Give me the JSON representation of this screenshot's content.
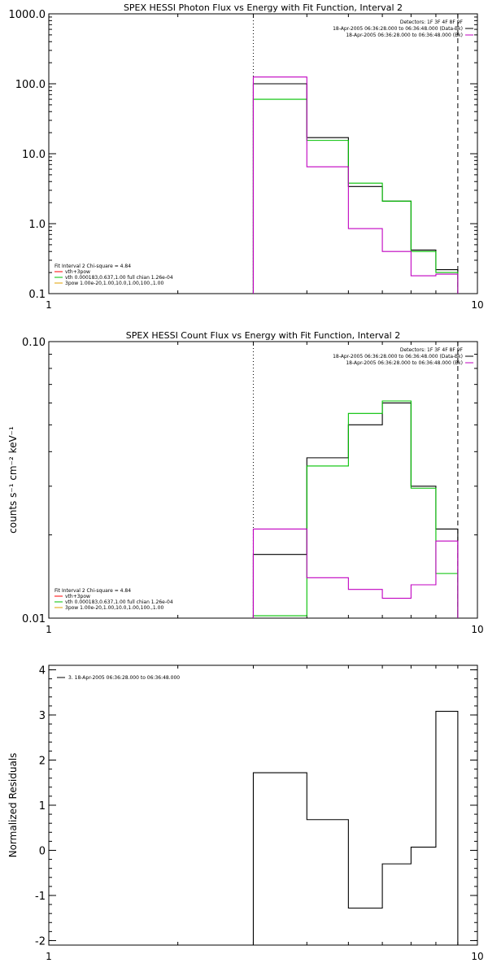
{
  "chart_data": [
    {
      "type": "line",
      "title": "SPEX HESSI Photon Flux vs Energy with Fit Function, Interval 2",
      "xscale": "log",
      "yscale": "log",
      "xlim": [
        1,
        10
      ],
      "ylim": [
        0.1,
        1000
      ],
      "xticks": [
        {
          "v": 1,
          "label": "1"
        },
        {
          "v": 10,
          "label": "10"
        }
      ],
      "yticks": [
        {
          "v": 0.1,
          "label": "0.1"
        },
        {
          "v": 1,
          "label": "1.0"
        },
        {
          "v": 10,
          "label": "10.0"
        },
        {
          "v": 100,
          "label": "100.0"
        },
        {
          "v": 1000,
          "label": "1000.0"
        }
      ],
      "ylabel": "",
      "vlines": [
        {
          "x": 3.0,
          "style": "dotted"
        },
        {
          "x": 9.0,
          "style": "dashed"
        }
      ],
      "edges": [
        3.0,
        4.0,
        5.0,
        6.0,
        7.0,
        8.0,
        9.0
      ],
      "series": [
        {
          "color": "#000000",
          "values": [
            100,
            17,
            3.4,
            2.1,
            0.42,
            0.22
          ]
        },
        {
          "color": "#00c000",
          "values": [
            60,
            15.5,
            3.8,
            2.1,
            0.4,
            0.2
          ]
        },
        {
          "color": "#c000c0",
          "values": [
            125,
            6.5,
            0.85,
            0.4,
            0.18,
            0.19
          ]
        }
      ],
      "legend_tr": {
        "lines": [
          "Detectors: 1F 3F 4F 8F 9F",
          "18-Apr-2005 06:36:28.000 to 06:36:48.000 (Data-Bk)",
          "18-Apr-2005 06:36:28.000 to 06:36:48.000 (Bk)"
        ],
        "colors": [
          null,
          "#000000",
          "#c000c0"
        ]
      },
      "legend_bl": {
        "lines": [
          "Fit Interval 2   Chi-square = 4.84",
          "vth+3pow",
          "vth 0.000183,0.637,1.00  full chian 1.26e-04",
          "3pow 1.00e-20,1.00,10.0,1.00,100.,1.00"
        ],
        "colors": [
          null,
          "#ff0000",
          "#00c000",
          "#e0a000"
        ]
      }
    },
    {
      "type": "line",
      "title": "SPEX HESSI Count Flux vs Energy with Fit Function, Interval 2",
      "xscale": "log",
      "yscale": "log",
      "xlim": [
        1,
        10
      ],
      "ylim": [
        0.01,
        0.1
      ],
      "xticks": [
        {
          "v": 1,
          "label": "1"
        },
        {
          "v": 10,
          "label": "10"
        }
      ],
      "yticks": [
        {
          "v": 0.01,
          "label": "0.01"
        },
        {
          "v": 0.1,
          "label": "0.10"
        }
      ],
      "ylabel": "counts s⁻¹ cm⁻² keV⁻¹",
      "vlines": [
        {
          "x": 3.0,
          "style": "dotted"
        },
        {
          "x": 9.0,
          "style": "dashed"
        }
      ],
      "edges": [
        3.0,
        4.0,
        5.0,
        6.0,
        7.0,
        8.0,
        9.0
      ],
      "series": [
        {
          "color": "#000000",
          "values": [
            0.017,
            0.038,
            0.05,
            0.06,
            0.03,
            0.021
          ]
        },
        {
          "color": "#00c000",
          "values": [
            0.0102,
            0.0355,
            0.055,
            0.061,
            0.0295,
            0.0145
          ]
        },
        {
          "color": "#c000c0",
          "values": [
            0.021,
            0.014,
            0.0127,
            0.0118,
            0.0132,
            0.019
          ]
        }
      ],
      "legend_tr": {
        "lines": [
          "Detectors: 1F 3F 4F 8F 9F",
          "18-Apr-2005 06:36:28.000 to 06:36:48.000 (Data-Bk)",
          "18-Apr-2005 06:36:28.000 to 06:36:48.000 (Bk)"
        ],
        "colors": [
          null,
          "#000000",
          "#c000c0"
        ]
      },
      "legend_bl": {
        "lines": [
          "Fit Interval 2   Chi-square = 4.84",
          "vth+3pow",
          "vth 0.000183,0.637,1.00  full chian 1.26e-04",
          "3pow 1.00e-20,1.00,10.0,1.00,100.,1.00"
        ],
        "colors": [
          null,
          "#ff0000",
          "#00c000",
          "#e0a000"
        ]
      }
    },
    {
      "type": "line",
      "title": "",
      "xscale": "log",
      "yscale": "linear",
      "xlim": [
        1,
        10
      ],
      "ylim": [
        -2.1,
        4.1
      ],
      "xticks": [
        {
          "v": 1,
          "label": "1"
        },
        {
          "v": 10,
          "label": "10"
        }
      ],
      "yticks": [
        {
          "v": -2,
          "label": "-2"
        },
        {
          "v": -1,
          "label": "-1"
        },
        {
          "v": 0,
          "label": "0"
        },
        {
          "v": 1,
          "label": "1"
        },
        {
          "v": 2,
          "label": "2"
        },
        {
          "v": 3,
          "label": "3"
        },
        {
          "v": 4,
          "label": "4"
        }
      ],
      "ylabel": "Normalized Residuals",
      "vlines": [],
      "edges": [
        3.0,
        4.0,
        5.0,
        6.0,
        7.0,
        8.0,
        9.0
      ],
      "series": [
        {
          "color": "#000000",
          "values": [
            1.72,
            0.68,
            -1.28,
            -0.3,
            0.07,
            3.08
          ]
        }
      ],
      "legend_tl": {
        "lines": [
          "3. 18-Apr-2005 06:36:28.000 to 06:36:48.000"
        ],
        "colors": [
          "#000000"
        ]
      }
    }
  ]
}
